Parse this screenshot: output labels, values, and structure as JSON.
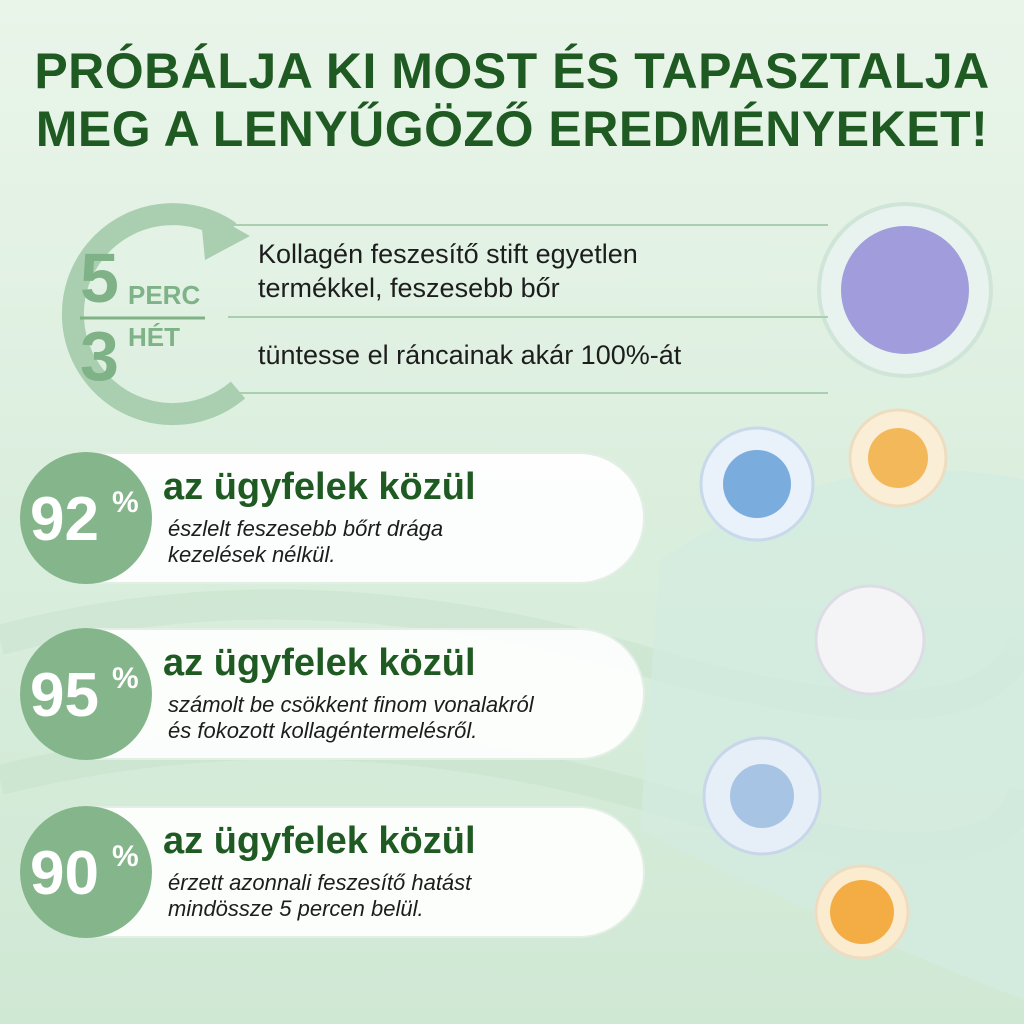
{
  "header": {
    "lines": [
      "PRÓBÁLJA KI MOST ÉS TAPASZTALJA",
      "MEG A LENYŰGÖZŐ EREDMÉNYEKET!"
    ]
  },
  "timer": {
    "first": {
      "number": "5",
      "unit": "PERC"
    },
    "second": {
      "number": "3",
      "unit": "HÉT"
    }
  },
  "claims": [
    {
      "lines": [
        "Kollagén feszesítő stift egyetlen",
        "termékkel, feszesebb bőr"
      ]
    },
    {
      "lines": [
        "tüntesse el ráncainak akár 100%-át"
      ]
    }
  ],
  "stats": [
    {
      "number": "92",
      "unit": "%",
      "heading": "az ügyfelek közül",
      "lines": [
        "észlelt feszesebb bőrt drága",
        "kezelések nélkül."
      ]
    },
    {
      "number": "95",
      "unit": "%",
      "heading": "az ügyfelek közül",
      "lines": [
        "számolt be csökkent finom vonalakról",
        "és fokozott kollagéntermelésről."
      ]
    },
    {
      "number": "90",
      "unit": "%",
      "heading": "az ügyfelek közül",
      "lines": [
        "érzett azonnali feszesítő hatást",
        "mindössze 5 percen belül."
      ]
    }
  ]
}
